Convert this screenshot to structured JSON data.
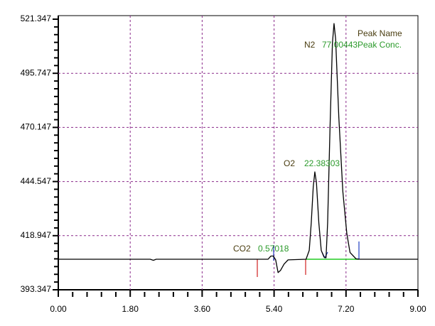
{
  "chart_data": {
    "type": "line",
    "x": [
      0,
      2.3,
      2.38,
      2.45,
      5.25,
      5.32,
      5.38,
      5.44,
      5.5,
      5.56,
      5.65,
      5.75,
      6.2,
      6.28,
      6.33,
      6.38,
      6.42,
      6.46,
      6.52,
      6.58,
      6.65,
      6.7,
      6.74,
      6.8,
      6.86,
      6.9,
      6.94,
      7.02,
      7.12,
      7.22,
      7.3,
      7.45,
      7.55,
      9.0
    ],
    "series": [
      {
        "color": "#000000",
        "values": [
          407.8,
          407.8,
          407.3,
          407.8,
          407.8,
          409.3,
          409.3,
          407.5,
          401.5,
          402.5,
          405.5,
          407.5,
          407.8,
          412,
          425,
          442,
          449.1,
          444,
          425,
          412,
          408.8,
          408.5,
          425,
          470,
          510,
          519.3,
          512,
          475,
          440,
          420,
          411,
          408,
          407.8,
          407.8
        ]
      }
    ],
    "xlim": [
      0,
      9
    ],
    "xticks": [
      {
        "value": 0,
        "label": "0.00"
      },
      {
        "value": 1.8,
        "label": "1.80"
      },
      {
        "value": 3.6,
        "label": "3.60"
      },
      {
        "value": 5.4,
        "label": "5.40"
      },
      {
        "value": 7.2,
        "label": "7.20"
      },
      {
        "value": 9,
        "label": "9.00"
      }
    ],
    "ylim": [
      393.347,
      521.347
    ],
    "yticks": [
      393.347,
      418.947,
      444.547,
      470.147,
      495.747,
      521.347
    ],
    "grid": true,
    "legend": {
      "name": "Peak Name",
      "conc": "Peak Conc."
    },
    "peaks": [
      {
        "name": "N2",
        "conc": "77.00443"
      },
      {
        "name": "O2",
        "conc": "22.38303"
      },
      {
        "name": "CO2",
        "conc": "0.57018"
      }
    ]
  }
}
